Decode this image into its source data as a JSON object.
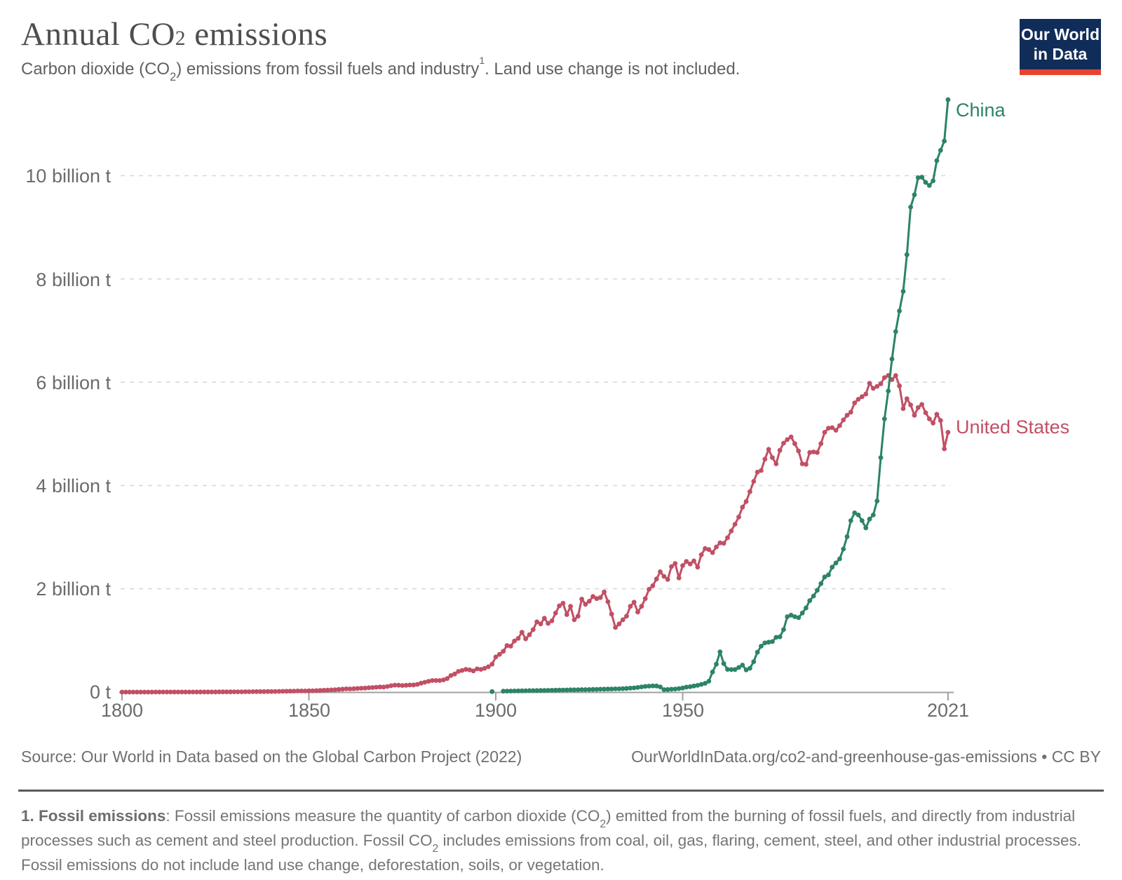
{
  "header": {
    "title_pre": "Annual CO",
    "title_sub": "2",
    "title_post": " emissions",
    "subtitle_part1": "Carbon dioxide (CO",
    "subtitle_sub": "2",
    "subtitle_part2": ") emissions from fossil fuels and industry",
    "subtitle_sup": "1",
    "subtitle_part3": ". Land use change is not included."
  },
  "logo": {
    "line1": "Our World",
    "line2": "in Data",
    "bg_color": "#102d59",
    "bar_color": "#e8432e"
  },
  "footer": {
    "source_left": "Source: Our World in Data based on the Global Carbon Project (2022)",
    "source_right": "OurWorldInData.org/co2-and-greenhouse-gas-emissions • CC BY"
  },
  "footnote": {
    "label": "1. Fossil emissions",
    "part1": ": Fossil emissions measure the quantity of carbon dioxide (CO",
    "sub1": "2",
    "part2": ") emitted from the burning of fossil fuels, and directly from industrial processes such as cement and steel production. Fossil CO",
    "sub2": "2",
    "part3": " includes emissions from coal, oil, gas, flaring, cement, steel, and other industrial processes. Fossil emissions do not include land use change, deforestation, soils, or vegetation."
  },
  "chart_data": {
    "type": "line",
    "title": "Annual CO2 emissions",
    "ylabel": "",
    "xlabel": "",
    "unit": "billion tonnes CO2",
    "xlim": [
      1800,
      2021
    ],
    "ylim": [
      0,
      11.6
    ],
    "grid": "dashed-horizontal",
    "gridline_values": [
      2,
      4,
      6,
      8,
      10
    ],
    "y_tick_labels": [
      "0 t",
      "2 billion t",
      "4 billion t",
      "6 billion t",
      "8 billion t",
      "10 billion t"
    ],
    "x_tick_years": [
      1800,
      1850,
      1900,
      1950,
      2021
    ],
    "x_tick_labels": [
      "1800",
      "1850",
      "1900",
      "1950",
      "2021"
    ],
    "legend_position": "end-of-line-labels",
    "colors": {
      "grid": "#d9d9d9",
      "axis": "#a0a0a0",
      "tick_text": "#6b6b6b"
    },
    "series": [
      {
        "name": "United States",
        "color": "#C15065",
        "start_year": 1800,
        "values": [
          0.0003,
          0.0003,
          0.0004,
          0.0004,
          0.0004,
          0.0005,
          0.0005,
          0.0006,
          0.0006,
          0.0007,
          0.0008,
          0.0009,
          0.0009,
          0.001,
          0.0011,
          0.0012,
          0.0013,
          0.0015,
          0.0016,
          0.0018,
          0.002,
          0.0022,
          0.0024,
          0.0026,
          0.0029,
          0.0032,
          0.0035,
          0.0038,
          0.0042,
          0.0046,
          0.0051,
          0.0056,
          0.0061,
          0.0067,
          0.0074,
          0.0081,
          0.0089,
          0.0098,
          0.0099,
          0.0108,
          0.011,
          0.012,
          0.0132,
          0.0145,
          0.0159,
          0.0175,
          0.0192,
          0.0211,
          0.0215,
          0.0218,
          0.024,
          0.0264,
          0.029,
          0.0319,
          0.0351,
          0.0386,
          0.0424,
          0.0467,
          0.0513,
          0.0564,
          0.062,
          0.0615,
          0.065,
          0.0712,
          0.074,
          0.0774,
          0.0836,
          0.088,
          0.0943,
          0.0989,
          0.098,
          0.108,
          0.123,
          0.135,
          0.133,
          0.128,
          0.132,
          0.137,
          0.138,
          0.15,
          0.173,
          0.19,
          0.209,
          0.224,
          0.224,
          0.224,
          0.236,
          0.262,
          0.32,
          0.35,
          0.4,
          0.42,
          0.44,
          0.43,
          0.41,
          0.45,
          0.44,
          0.46,
          0.49,
          0.54,
          0.68,
          0.73,
          0.79,
          0.9,
          0.89,
          0.99,
          1.04,
          1.16,
          1.03,
          1.11,
          1.21,
          1.36,
          1.32,
          1.43,
          1.33,
          1.38,
          1.53,
          1.67,
          1.72,
          1.5,
          1.66,
          1.4,
          1.47,
          1.8,
          1.7,
          1.76,
          1.85,
          1.81,
          1.83,
          1.94,
          1.75,
          1.51,
          1.25,
          1.32,
          1.4,
          1.47,
          1.66,
          1.74,
          1.55,
          1.66,
          1.81,
          1.99,
          2.06,
          2.19,
          2.33,
          2.24,
          2.18,
          2.43,
          2.49,
          2.21,
          2.45,
          2.53,
          2.48,
          2.54,
          2.42,
          2.66,
          2.78,
          2.76,
          2.7,
          2.81,
          2.89,
          2.88,
          2.99,
          3.12,
          3.25,
          3.39,
          3.58,
          3.69,
          3.88,
          4.08,
          4.26,
          4.29,
          4.51,
          4.7,
          4.54,
          4.42,
          4.68,
          4.82,
          4.89,
          4.94,
          4.81,
          4.67,
          4.42,
          4.41,
          4.64,
          4.65,
          4.64,
          4.81,
          5.03,
          5.11,
          5.12,
          5.07,
          5.16,
          5.27,
          5.36,
          5.42,
          5.6,
          5.67,
          5.72,
          5.77,
          5.98,
          5.88,
          5.92,
          5.97,
          6.09,
          6.13,
          6.05,
          6.13,
          5.93,
          5.49,
          5.68,
          5.56,
          5.36,
          5.51,
          5.57,
          5.41,
          5.29,
          5.21,
          5.38,
          5.26,
          4.71,
          5.03
        ]
      },
      {
        "name": "China",
        "color": "#2C8465",
        "start_year": 1902,
        "isolated_points": [
          {
            "year": 1899,
            "value": 0.01
          }
        ],
        "values": [
          0.018,
          0.019,
          0.02,
          0.022,
          0.023,
          0.025,
          0.026,
          0.028,
          0.029,
          0.03,
          0.031,
          0.032,
          0.034,
          0.035,
          0.037,
          0.038,
          0.04,
          0.041,
          0.043,
          0.044,
          0.046,
          0.047,
          0.048,
          0.049,
          0.051,
          0.053,
          0.055,
          0.057,
          0.059,
          0.06,
          0.062,
          0.063,
          0.066,
          0.07,
          0.076,
          0.082,
          0.09,
          0.1,
          0.11,
          0.115,
          0.12,
          0.118,
          0.1,
          0.047,
          0.05,
          0.055,
          0.06,
          0.068,
          0.079,
          0.097,
          0.105,
          0.118,
          0.131,
          0.15,
          0.17,
          0.21,
          0.39,
          0.54,
          0.78,
          0.552,
          0.44,
          0.436,
          0.437,
          0.476,
          0.523,
          0.429,
          0.461,
          0.589,
          0.772,
          0.89,
          0.952,
          0.967,
          0.977,
          1.06,
          1.07,
          1.21,
          1.46,
          1.49,
          1.46,
          1.44,
          1.53,
          1.63,
          1.77,
          1.86,
          1.97,
          2.1,
          2.23,
          2.27,
          2.42,
          2.5,
          2.58,
          2.77,
          3.01,
          3.32,
          3.47,
          3.43,
          3.32,
          3.18,
          3.35,
          3.43,
          3.7,
          4.54,
          5.29,
          5.83,
          6.45,
          6.98,
          7.38,
          7.76,
          8.47,
          9.39,
          9.63,
          9.96,
          9.97,
          9.87,
          9.81,
          9.9,
          10.29,
          10.49,
          10.67,
          11.47
        ]
      }
    ]
  }
}
